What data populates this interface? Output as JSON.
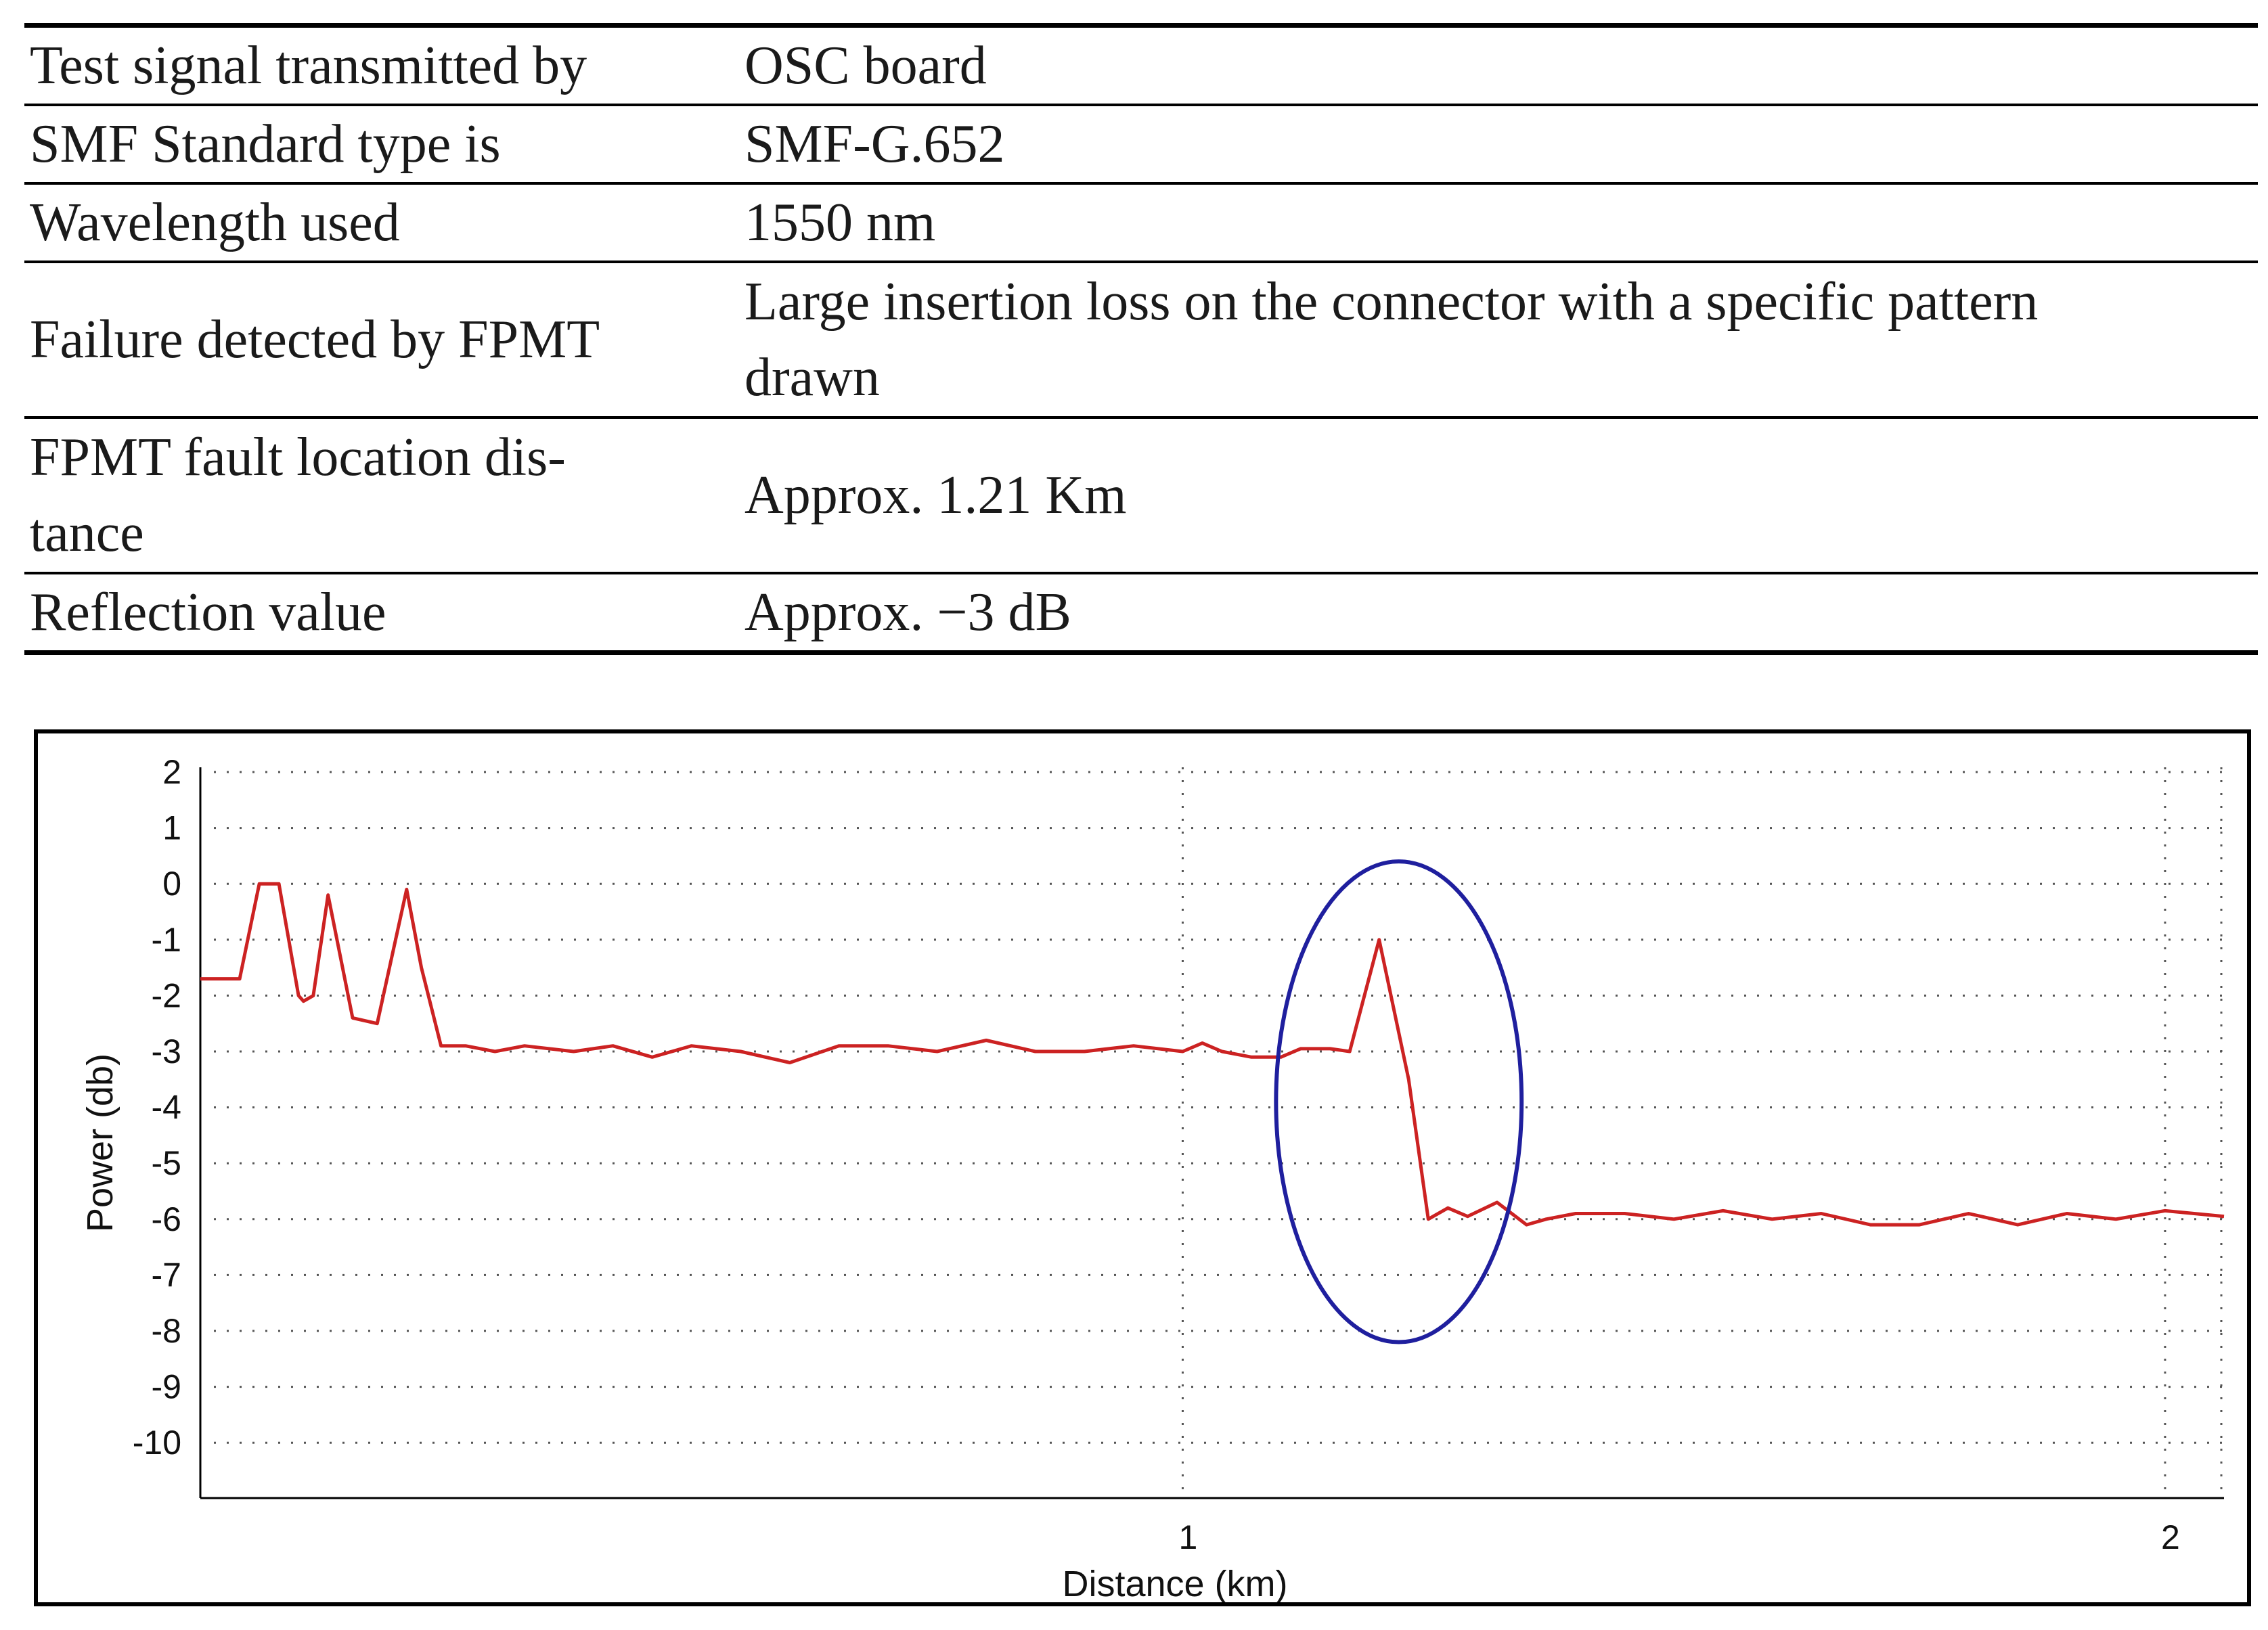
{
  "table": {
    "rows": [
      {
        "label": "Test signal transmitted by",
        "value": "OSC board"
      },
      {
        "label": "SMF Standard type is",
        "value": "SMF-G.652"
      },
      {
        "label": "Wavelength used",
        "value": "1550 nm"
      },
      {
        "label": "Failure detected by FPMT",
        "value": "Large insertion loss on the connector with a specific pattern drawn"
      },
      {
        "label": "FPMT fault location distance",
        "value": "Approx. 1.21 Km"
      },
      {
        "label": "Reflection value",
        "value": "Approx. −3 dB"
      }
    ],
    "row4_value_lines": [
      "Large insertion loss on the connector with a specific pattern",
      "drawn"
    ],
    "row5_label_lines": [
      "FPMT fault location dis-",
      "tance"
    ]
  },
  "chart_data": {
    "type": "line",
    "xlabel": "Distance (km)",
    "ylabel": "Power (db)",
    "xlim": [
      0,
      2.06
    ],
    "ylim": [
      -11,
      2
    ],
    "x_ticks": [
      1,
      2
    ],
    "x_tick_labels": [
      "1",
      "2"
    ],
    "y_ticks": [
      2,
      1,
      0,
      -1,
      -2,
      -3,
      -4,
      -5,
      -6,
      -7,
      -8,
      -9,
      -10
    ],
    "y_tick_labels": [
      "2",
      "1",
      "0",
      "-1",
      "-2",
      "-3",
      "-4",
      "-5",
      "-6",
      "-7",
      "-8",
      "-9",
      "-10"
    ],
    "grid": "dotted",
    "series": [
      {
        "color": "#cc2222",
        "x": [
          0,
          0.04,
          0.06,
          0.08,
          0.1,
          0.105,
          0.115,
          0.13,
          0.155,
          0.18,
          0.21,
          0.225,
          0.245,
          0.27,
          0.3,
          0.33,
          0.38,
          0.42,
          0.46,
          0.5,
          0.55,
          0.6,
          0.65,
          0.7,
          0.75,
          0.8,
          0.85,
          0.9,
          0.95,
          1.0,
          1.02,
          1.04,
          1.07,
          1.1,
          1.12,
          1.15,
          1.17,
          1.2,
          1.23,
          1.25,
          1.27,
          1.29,
          1.32,
          1.35,
          1.37,
          1.4,
          1.45,
          1.5,
          1.55,
          1.6,
          1.65,
          1.7,
          1.75,
          1.8,
          1.85,
          1.9,
          1.95,
          2.0,
          2.06
        ],
        "y": [
          -1.7,
          -1.7,
          0,
          0,
          -2,
          -2.1,
          -2.0,
          -0.2,
          -2.4,
          -2.5,
          -0.1,
          -1.5,
          -2.9,
          -2.9,
          -3.0,
          -2.9,
          -3.0,
          -2.9,
          -3.1,
          -2.9,
          -3.0,
          -3.2,
          -2.9,
          -2.9,
          -3.0,
          -2.8,
          -3.0,
          -3.0,
          -2.9,
          -3.0,
          -2.85,
          -3.0,
          -3.1,
          -3.1,
          -2.95,
          -2.95,
          -3.0,
          -1.0,
          -3.5,
          -6.0,
          -5.8,
          -5.95,
          -5.7,
          -6.1,
          -6.0,
          -5.9,
          -5.9,
          -6.0,
          -5.85,
          -6.0,
          -5.9,
          -6.1,
          -6.1,
          -5.9,
          -6.1,
          -5.9,
          -6.0,
          -5.85,
          -5.95
        ]
      }
    ],
    "annotation": {
      "shape": "ellipse",
      "color": "#1f1f9e",
      "cx": 1.22,
      "cy": -3.9,
      "rx": 0.125,
      "ry": 4.3
    }
  }
}
